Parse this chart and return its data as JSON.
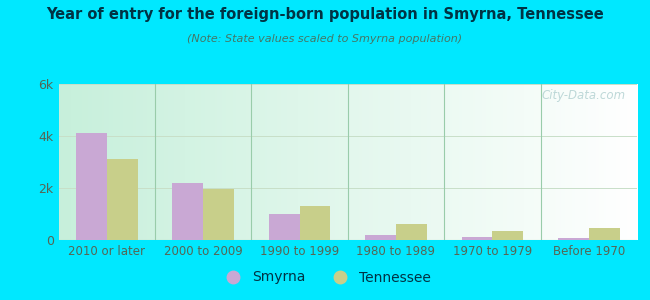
{
  "title": "Year of entry for the foreign-born population in Smyrna, Tennessee",
  "subtitle": "(Note: State values scaled to Smyrna population)",
  "categories": [
    "2010 or later",
    "2000 to 2009",
    "1990 to 1999",
    "1980 to 1989",
    "1970 to 1979",
    "Before 1970"
  ],
  "smyrna_values": [
    4100,
    2200,
    1000,
    200,
    100,
    60
  ],
  "tennessee_values": [
    3100,
    1950,
    1300,
    600,
    350,
    450
  ],
  "smyrna_color": "#c9a8d4",
  "tennessee_color": "#c8cf8a",
  "ylim": [
    0,
    6000
  ],
  "yticks": [
    0,
    2000,
    4000,
    6000
  ],
  "ytick_labels": [
    "0",
    "2k",
    "4k",
    "6k"
  ],
  "bar_width": 0.32,
  "outer_background": "#00e8ff",
  "chart_bg_top_left": "#c8f0dc",
  "chart_bg_right": "#f0faf4",
  "grid_color": "#c8dfc8",
  "watermark": "City-Data.com",
  "title_color": "#003344",
  "subtitle_color": "#447766",
  "tick_color": "#556655",
  "sep_line_color": "#99ccaa"
}
